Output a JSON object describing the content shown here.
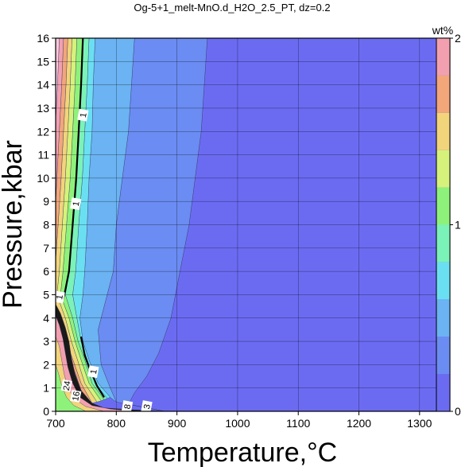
{
  "chart_data": {
    "type": "contour",
    "title": "Og-5+1_melt-MnO.d_H2O_2.5_PT, dz=0.2",
    "xlabel": "Temperature,°C",
    "ylabel": "Pressure,kbar",
    "xlim": [
      700,
      1350
    ],
    "ylim": [
      0,
      16
    ],
    "xticks": [
      700,
      800,
      900,
      1000,
      1100,
      1200,
      1300
    ],
    "yticks": [
      0,
      1,
      2,
      3,
      4,
      5,
      6,
      7,
      8,
      9,
      10,
      11,
      12,
      13,
      14,
      15,
      16
    ],
    "grid": true,
    "colorbar": {
      "label": "wt%",
      "range": [
        0,
        2
      ],
      "tick_labels": [
        "0",
        "1",
        "2"
      ],
      "step": 0.2,
      "colors": [
        "#6b6bf2",
        "#6b8cf2",
        "#6bb3f2",
        "#6bdff2",
        "#7af2b8",
        "#8ef27a",
        "#d6f27a",
        "#f2d47a",
        "#f2a67a",
        "#f2a0b0",
        "#f8c8dc"
      ]
    },
    "contour_labels": [
      {
        "text": "1",
        "T": 745,
        "P": 12.7
      },
      {
        "text": "1",
        "T": 733,
        "P": 8.9
      },
      {
        "text": "1",
        "T": 706,
        "P": 4.9
      },
      {
        "text": "1",
        "T": 762,
        "P": 1.7
      },
      {
        "text": "24",
        "T": 718,
        "P": 1.1
      },
      {
        "text": "16",
        "T": 733,
        "P": 0.65
      },
      {
        "text": "8",
        "T": 818,
        "P": 0.2
      },
      {
        "text": "3",
        "T": 850,
        "P": 0.2
      }
    ],
    "regions": [
      {
        "level": "0-0.2",
        "color": "#6b6bf2",
        "boundary": [
          [
            950,
            16
          ],
          [
            945,
            14
          ],
          [
            940,
            12
          ],
          [
            930,
            10
          ],
          [
            920,
            8
          ],
          [
            905,
            6
          ],
          [
            890,
            4
          ],
          [
            870,
            2.5
          ],
          [
            850,
            1.5
          ],
          [
            830,
            0.8
          ],
          [
            820,
            0.3
          ],
          [
            880,
            0
          ],
          [
            1350,
            0
          ],
          [
            1350,
            16
          ]
        ]
      },
      {
        "level": "0.2-0.4",
        "color": "#6b8cf2",
        "boundary": [
          [
            830,
            16
          ],
          [
            825,
            14
          ],
          [
            820,
            12
          ],
          [
            810,
            10
          ],
          [
            800,
            8
          ],
          [
            795,
            6
          ],
          [
            780,
            4.5
          ],
          [
            770,
            3.5
          ],
          [
            775,
            2
          ],
          [
            790,
            1
          ],
          [
            800,
            0.4
          ],
          [
            880,
            0
          ],
          [
            820,
            0.3
          ],
          [
            830,
            0.8
          ],
          [
            850,
            1.5
          ],
          [
            870,
            2.5
          ],
          [
            890,
            4
          ],
          [
            905,
            6
          ],
          [
            920,
            8
          ],
          [
            930,
            10
          ],
          [
            940,
            12
          ],
          [
            945,
            14
          ],
          [
            950,
            16
          ]
        ]
      },
      {
        "level": "0.4-0.6",
        "color": "#6bb3f2",
        "boundary": [
          [
            765,
            16
          ],
          [
            762,
            14
          ],
          [
            760,
            12
          ],
          [
            755,
            10
          ],
          [
            752,
            8
          ],
          [
            748,
            6
          ],
          [
            745,
            5
          ],
          [
            740,
            4
          ],
          [
            745,
            3
          ],
          [
            755,
            2.2
          ],
          [
            770,
            1.2
          ],
          [
            790,
            0.6
          ],
          [
            800,
            0.4
          ],
          [
            790,
            1
          ],
          [
            775,
            2
          ],
          [
            770,
            3.5
          ],
          [
            780,
            4.5
          ],
          [
            795,
            6
          ],
          [
            800,
            8
          ],
          [
            810,
            10
          ],
          [
            820,
            12
          ],
          [
            825,
            14
          ],
          [
            830,
            16
          ]
        ]
      },
      {
        "level": "0.6-0.8",
        "color": "#6bdff2",
        "boundary": [
          [
            755,
            16
          ],
          [
            752,
            14
          ],
          [
            748,
            12
          ],
          [
            744,
            10
          ],
          [
            738,
            8
          ],
          [
            733,
            6
          ],
          [
            728,
            5
          ],
          [
            735,
            4
          ],
          [
            742,
            3
          ],
          [
            752,
            2.2
          ],
          [
            765,
            1.2
          ],
          [
            785,
            0.55
          ],
          [
            790,
            0.6
          ],
          [
            770,
            1.2
          ],
          [
            755,
            2.2
          ],
          [
            745,
            3
          ],
          [
            740,
            4
          ],
          [
            745,
            5
          ],
          [
            748,
            6
          ],
          [
            752,
            8
          ],
          [
            755,
            10
          ],
          [
            760,
            12
          ],
          [
            762,
            14
          ],
          [
            765,
            16
          ]
        ]
      },
      {
        "level": "0.8-1.0",
        "color": "#7af2b8",
        "boundary": [
          [
            745,
            16
          ],
          [
            742,
            14
          ],
          [
            738,
            12
          ],
          [
            734,
            10
          ],
          [
            728,
            8
          ],
          [
            722,
            6
          ],
          [
            716,
            5
          ],
          [
            728,
            4
          ],
          [
            737,
            3
          ],
          [
            748,
            2.2
          ],
          [
            760,
            1.2
          ],
          [
            780,
            0.5
          ],
          [
            785,
            0.55
          ],
          [
            765,
            1.2
          ],
          [
            752,
            2.2
          ],
          [
            742,
            3
          ],
          [
            735,
            4
          ],
          [
            728,
            5
          ],
          [
            733,
            6
          ],
          [
            738,
            8
          ],
          [
            744,
            10
          ],
          [
            748,
            12
          ],
          [
            752,
            14
          ],
          [
            755,
            16
          ]
        ]
      },
      {
        "level": "1.0-1.2",
        "color": "#8ef27a",
        "boundary": [
          [
            735,
            16
          ],
          [
            732,
            14
          ],
          [
            728,
            12
          ],
          [
            724,
            10
          ],
          [
            718,
            8
          ],
          [
            712,
            6
          ],
          [
            708,
            5
          ],
          [
            722,
            4
          ],
          [
            732,
            3
          ],
          [
            742,
            2.2
          ],
          [
            755,
            1.2
          ],
          [
            775,
            0.45
          ],
          [
            780,
            0.5
          ],
          [
            760,
            1.2
          ],
          [
            748,
            2.2
          ],
          [
            737,
            3
          ],
          [
            728,
            4
          ],
          [
            716,
            5
          ],
          [
            722,
            6
          ],
          [
            728,
            8
          ],
          [
            734,
            10
          ],
          [
            738,
            12
          ],
          [
            742,
            14
          ],
          [
            745,
            16
          ]
        ]
      },
      {
        "level": "1.2-1.4",
        "color": "#d6f27a",
        "boundary": [
          [
            727,
            16
          ],
          [
            724,
            14
          ],
          [
            720,
            12
          ],
          [
            716,
            10
          ],
          [
            711,
            8
          ],
          [
            706,
            6
          ],
          [
            702,
            5
          ],
          [
            716,
            4
          ],
          [
            726,
            3
          ],
          [
            736,
            2.2
          ],
          [
            748,
            1.2
          ],
          [
            768,
            0.4
          ],
          [
            775,
            0.45
          ],
          [
            755,
            1.2
          ],
          [
            742,
            2.2
          ],
          [
            732,
            3
          ],
          [
            722,
            4
          ],
          [
            708,
            5
          ],
          [
            712,
            6
          ],
          [
            718,
            8
          ],
          [
            724,
            10
          ],
          [
            728,
            12
          ],
          [
            732,
            14
          ],
          [
            735,
            16
          ]
        ]
      },
      {
        "level": "1.4-1.6",
        "color": "#f2d47a",
        "boundary": [
          [
            720,
            16
          ],
          [
            717,
            14
          ],
          [
            713,
            12
          ],
          [
            709,
            10
          ],
          [
            704,
            8
          ],
          [
            700,
            6.5
          ],
          [
            700,
            4.2
          ],
          [
            710,
            3.5
          ],
          [
            720,
            2.8
          ],
          [
            730,
            2.1
          ],
          [
            742,
            1.2
          ],
          [
            760,
            0.35
          ],
          [
            768,
            0.4
          ],
          [
            748,
            1.2
          ],
          [
            736,
            2.2
          ],
          [
            726,
            3
          ],
          [
            716,
            4
          ],
          [
            702,
            5
          ],
          [
            706,
            6
          ],
          [
            711,
            8
          ],
          [
            716,
            10
          ],
          [
            720,
            12
          ],
          [
            724,
            14
          ],
          [
            727,
            16
          ]
        ]
      },
      {
        "level": "1.6-1.8",
        "color": "#f2a67a",
        "boundary": [
          [
            713,
            16
          ],
          [
            710,
            14
          ],
          [
            706,
            12
          ],
          [
            702,
            10
          ],
          [
            700,
            9
          ],
          [
            700,
            3.9
          ],
          [
            712,
            3.1
          ],
          [
            722,
            2.4
          ],
          [
            734,
            1.5
          ],
          [
            750,
            0.3
          ],
          [
            760,
            0.35
          ],
          [
            742,
            1.2
          ],
          [
            730,
            2.1
          ],
          [
            720,
            2.8
          ],
          [
            710,
            3.5
          ],
          [
            700,
            4.2
          ],
          [
            700,
            6.5
          ],
          [
            704,
            8
          ],
          [
            709,
            10
          ],
          [
            713,
            12
          ],
          [
            717,
            14
          ],
          [
            720,
            16
          ]
        ]
      },
      {
        "level": "1.8-2.0",
        "color": "#f2a0b0",
        "boundary": [
          [
            706,
            16
          ],
          [
            703,
            14
          ],
          [
            700,
            12.5
          ],
          [
            700,
            3.6
          ],
          [
            708,
            2.8
          ],
          [
            718,
            2.1
          ],
          [
            728,
            1.3
          ],
          [
            742,
            0.25
          ],
          [
            750,
            0.3
          ],
          [
            734,
            1.5
          ],
          [
            722,
            2.4
          ],
          [
            712,
            3.1
          ],
          [
            700,
            3.9
          ],
          [
            700,
            9
          ],
          [
            702,
            10
          ],
          [
            706,
            12
          ],
          [
            710,
            14
          ],
          [
            713,
            16
          ]
        ]
      },
      {
        "level": ">2.0",
        "color": "#f8c8dc",
        "boundary": [
          [
            700,
            16
          ],
          [
            706,
            16
          ],
          [
            703,
            14
          ],
          [
            700,
            12.5
          ]
        ]
      },
      {
        "level": "high-melt",
        "color": "#1a1a1a",
        "boundary": [
          [
            700,
            4.6
          ],
          [
            708,
            4.2
          ],
          [
            716,
            3.6
          ],
          [
            722,
            3.0
          ],
          [
            726,
            2.3
          ],
          [
            732,
            1.6
          ],
          [
            742,
            0.9
          ],
          [
            760,
            0.35
          ],
          [
            780,
            0.15
          ],
          [
            820,
            0.08
          ],
          [
            880,
            0
          ],
          [
            700,
            0
          ]
        ]
      },
      {
        "level": "high-melt-inner",
        "color": "#f2a0b0",
        "boundary": [
          [
            700,
            4.1
          ],
          [
            706,
            3.7
          ],
          [
            712,
            3.1
          ],
          [
            716,
            2.5
          ],
          [
            720,
            1.9
          ],
          [
            728,
            1.2
          ],
          [
            740,
            0.6
          ],
          [
            760,
            0.25
          ],
          [
            790,
            0.1
          ],
          [
            830,
            0
          ],
          [
            700,
            0
          ]
        ]
      },
      {
        "level": "high-melt-core",
        "color": "#f2d47a",
        "boundary": [
          [
            700,
            3.2
          ],
          [
            706,
            2.8
          ],
          [
            710,
            2.2
          ],
          [
            714,
            1.6
          ],
          [
            720,
            1.0
          ],
          [
            732,
            0.5
          ],
          [
            750,
            0.2
          ],
          [
            780,
            0
          ],
          [
            700,
            0
          ]
        ]
      },
      {
        "level": "high-melt-core2",
        "color": "#8ef27a",
        "boundary": [
          [
            700,
            2.0
          ],
          [
            705,
            1.6
          ],
          [
            710,
            1.1
          ],
          [
            718,
            0.6
          ],
          [
            730,
            0.25
          ],
          [
            750,
            0
          ],
          [
            700,
            0
          ]
        ]
      }
    ],
    "contour_lines": [
      {
        "level": 1.0,
        "points": [
          [
            745,
            16
          ],
          [
            742,
            14
          ],
          [
            738,
            12
          ],
          [
            734,
            10
          ],
          [
            728,
            8
          ],
          [
            722,
            6
          ],
          [
            716,
            5.2
          ],
          [
            712,
            4.8
          ]
        ]
      },
      {
        "level": 1.0,
        "points": [
          [
            742,
            3.2
          ],
          [
            748,
            2.4
          ],
          [
            755,
            1.9
          ],
          [
            760,
            1.6
          ],
          [
            768,
            1.1
          ],
          [
            780,
            0.6
          ]
        ]
      }
    ]
  }
}
